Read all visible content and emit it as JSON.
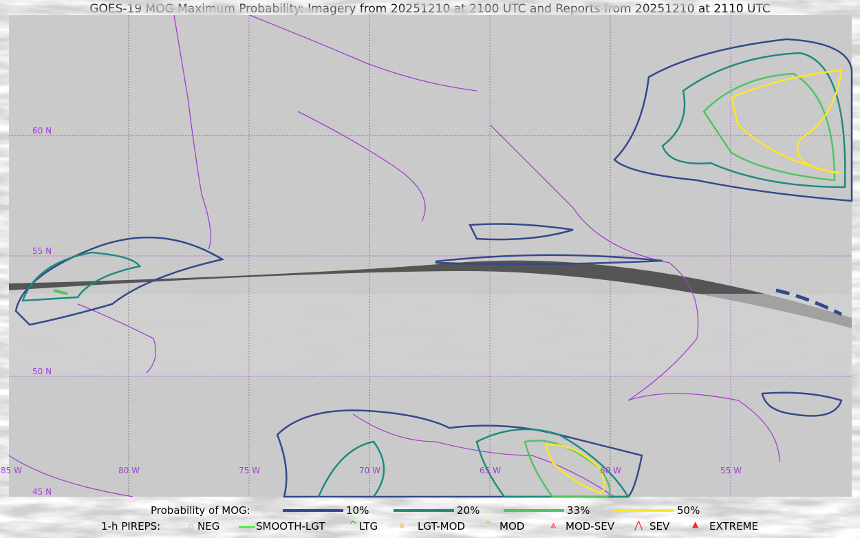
{
  "title": "GOES-19 MOG Maximum Probability: Imagery from 20251210 at 2100 UTC and Reports from 20251210 at 2110 UTC",
  "map": {
    "lon_labels": [
      "85 W",
      "80 W",
      "75 W",
      "70 W",
      "65 W",
      "60 W",
      "55 W"
    ],
    "lat_labels": [
      "45 N",
      "50 N",
      "55 N",
      "60 N"
    ],
    "coastline_color": "#a040d0"
  },
  "legend": {
    "probability_label": "Probability of MOG:",
    "probability_levels": [
      {
        "label": "10%",
        "color": "#34498a"
      },
      {
        "label": "20%",
        "color": "#1f8a80"
      },
      {
        "label": "33%",
        "color": "#52c266"
      },
      {
        "label": "50%",
        "color": "#fde725"
      }
    ],
    "pireps_label": "1-h PIREPS:",
    "pireps": [
      {
        "label": "NEG",
        "color": "#c8c8ff",
        "icon": "neg-icon"
      },
      {
        "label": "SMOOTH-LGT",
        "color": "#33ee33",
        "icon": "line-icon"
      },
      {
        "label": "LTG",
        "color": "#00dd00",
        "icon": "caret-icon"
      },
      {
        "label": "LGT-MOD",
        "color": "#ffb833",
        "icon": "caret-bar-icon"
      },
      {
        "label": "MOD",
        "color": "#ffb833",
        "icon": "caret-icon"
      },
      {
        "label": "MOD-SEV",
        "color": "#ff3333",
        "icon": "double-caret-bar-icon"
      },
      {
        "label": "SEV",
        "color": "#ff3333",
        "icon": "double-caret-icon"
      },
      {
        "label": "EXTREME",
        "color": "#ff2222",
        "icon": "triangle-icon"
      }
    ]
  }
}
